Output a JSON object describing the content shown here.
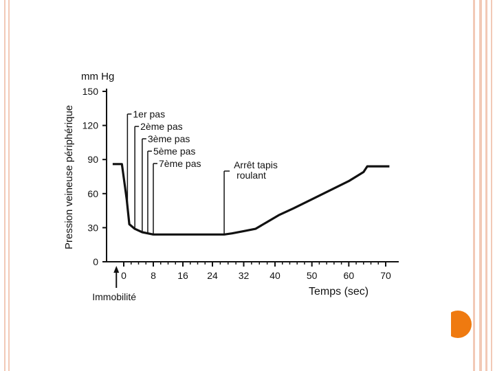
{
  "chart_data": {
    "type": "line",
    "ylabel": "Pression veineuse périphérique",
    "yunit": "mm Hg",
    "xlabel": "Temps (sec)",
    "ylim": [
      0,
      150
    ],
    "yticks": [
      0,
      30,
      60,
      90,
      120,
      150
    ],
    "xticks": [
      0,
      8,
      16,
      24,
      32,
      40,
      50,
      60,
      70
    ],
    "series": [
      {
        "name": "Pression veineuse",
        "points": [
          [
            -3,
            86
          ],
          [
            -0.5,
            86
          ],
          [
            0.8,
            55
          ],
          [
            1.5,
            33
          ],
          [
            3,
            29
          ],
          [
            5,
            26
          ],
          [
            8,
            24
          ],
          [
            16,
            24
          ],
          [
            24,
            24
          ],
          [
            27,
            24
          ],
          [
            29,
            25
          ],
          [
            32,
            27
          ],
          [
            35,
            29
          ],
          [
            38,
            35
          ],
          [
            41,
            41
          ],
          [
            45,
            47
          ],
          [
            50,
            55
          ],
          [
            55,
            63
          ],
          [
            60,
            71
          ],
          [
            64,
            79
          ],
          [
            65,
            84
          ],
          [
            71,
            84
          ]
        ]
      }
    ],
    "annotations": [
      {
        "label": "1er pas",
        "x": 1
      },
      {
        "label": "2ème pas",
        "x": 3
      },
      {
        "label": "3ème pas",
        "x": 5
      },
      {
        "label": "5ème pas",
        "x": 6.5
      },
      {
        "label": "7ème pas",
        "x": 8
      },
      {
        "label": "Arrêt tapis",
        "label2": "roulant",
        "x": 27
      }
    ],
    "arrow_label": "Immobilité",
    "arrow_x": -2
  },
  "colors": {
    "frame": "#f2c9b6",
    "accent": "#ef7a10",
    "line": "#111111"
  }
}
